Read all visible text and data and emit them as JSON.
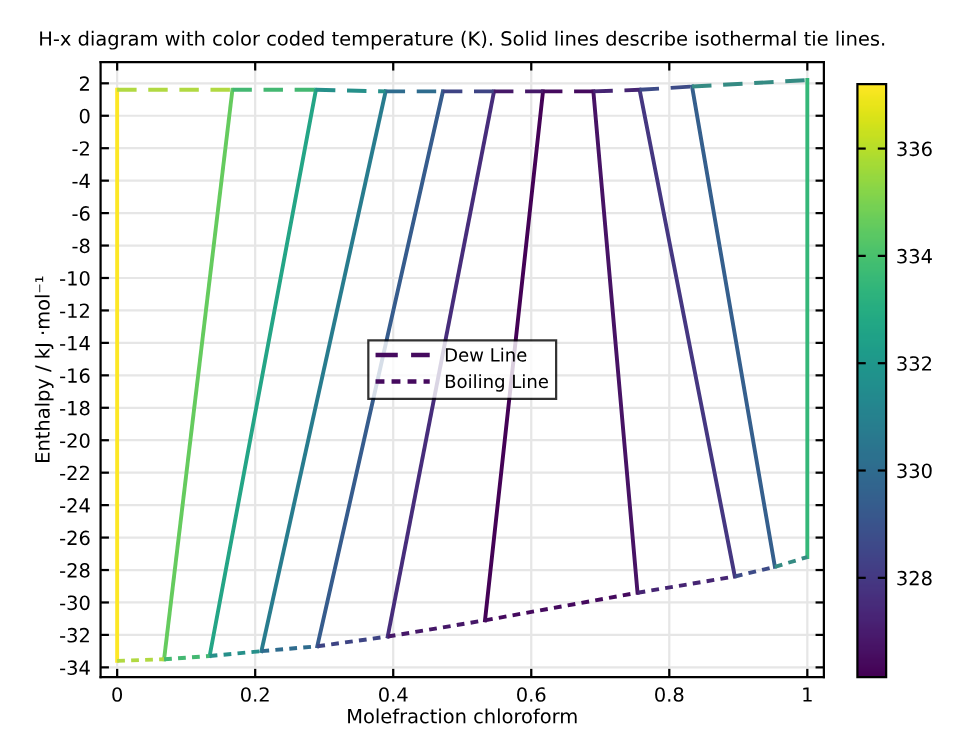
{
  "chart_data": {
    "type": "line",
    "title": "H-x diagram with color coded temperature (K). Solid lines describe isothermal tie lines.",
    "xlabel": "Molefraction chloroform",
    "ylabel": "Enthalpy / kJ ·mol⁻¹",
    "series": [
      {
        "x": [
          0,
          0
        ],
        "values": [
          -33.6,
          1.6
        ],
        "color": "#fde725"
      },
      {
        "x": [
          0.068,
          0.167
        ],
        "values": [
          -33.5,
          1.6
        ],
        "color": "#65cb5e"
      },
      {
        "x": [
          0.134,
          0.288
        ],
        "values": [
          -33.3,
          1.6
        ],
        "color": "#24a586"
      },
      {
        "x": [
          0.209,
          0.389
        ],
        "values": [
          -33.0,
          1.5
        ],
        "color": "#287c8e"
      },
      {
        "x": [
          0.29,
          0.472
        ],
        "values": [
          -32.7,
          1.5
        ],
        "color": "#365c8d"
      },
      {
        "x": [
          0.392,
          0.546
        ],
        "values": [
          -32.1,
          1.5
        ],
        "color": "#472d7b"
      },
      {
        "x": [
          0.533,
          0.617
        ],
        "values": [
          -31.1,
          1.5
        ],
        "color": "#440256"
      },
      {
        "x": [
          0.754,
          0.69
        ],
        "values": [
          -29.4,
          1.5
        ],
        "color": "#471365"
      },
      {
        "x": [
          0.895,
          0.757
        ],
        "values": [
          -28.4,
          1.6
        ],
        "color": "#453781"
      },
      {
        "x": [
          0.953,
          0.833
        ],
        "values": [
          -27.8,
          1.8
        ],
        "color": "#355f8d"
      },
      {
        "x": [
          1.0,
          1.0
        ],
        "values": [
          -27.2,
          2.2
        ],
        "color": "#35b779"
      },
      {
        "line_style": "dashed",
        "x": [
          0,
          0.167
        ],
        "values": [
          1.6,
          1.6
        ],
        "color": "#b1d942"
      },
      {
        "line_style": "dashed",
        "x": [
          0.167,
          0.288
        ],
        "values": [
          1.6,
          1.6
        ],
        "color": "#44b872"
      },
      {
        "line_style": "dashed",
        "x": [
          0.288,
          0.389
        ],
        "values": [
          1.6,
          1.5
        ],
        "color": "#26908a"
      },
      {
        "line_style": "dashed",
        "x": [
          0.389,
          0.472
        ],
        "values": [
          1.5,
          1.5
        ],
        "color": "#2f6c8e"
      },
      {
        "line_style": "dashed",
        "x": [
          0.472,
          0.546
        ],
        "values": [
          1.5,
          1.5
        ],
        "color": "#3e4484"
      },
      {
        "line_style": "dashed",
        "x": [
          0.546,
          0.617
        ],
        "values": [
          1.5,
          1.5
        ],
        "color": "#461868"
      },
      {
        "name": "Dew Line",
        "line_style": "dashed",
        "x": [
          0.617,
          0.69
        ],
        "values": [
          1.5,
          1.5
        ],
        "color": "#450a5e"
      },
      {
        "line_style": "dashed",
        "x": [
          0.69,
          0.757
        ],
        "values": [
          1.5,
          1.6
        ],
        "color": "#462573"
      },
      {
        "line_style": "dashed",
        "x": [
          0.757,
          0.833
        ],
        "values": [
          1.6,
          1.8
        ],
        "color": "#3d4b87"
      },
      {
        "line_style": "dashed",
        "x": [
          0.833,
          1.0
        ],
        "values": [
          1.8,
          2.2
        ],
        "color": "#358b83"
      },
      {
        "line_style": "dotted",
        "x": [
          0,
          0.068
        ],
        "values": [
          -33.6,
          -33.5
        ],
        "color": "#b1d942"
      },
      {
        "line_style": "dotted",
        "x": [
          0.068,
          0.134
        ],
        "values": [
          -33.5,
          -33.3
        ],
        "color": "#44b872"
      },
      {
        "line_style": "dotted",
        "x": [
          0.134,
          0.209
        ],
        "values": [
          -33.3,
          -33.0
        ],
        "color": "#26908a"
      },
      {
        "line_style": "dotted",
        "x": [
          0.209,
          0.29
        ],
        "values": [
          -33.0,
          -32.7
        ],
        "color": "#2f6c8e"
      },
      {
        "line_style": "dotted",
        "x": [
          0.29,
          0.392
        ],
        "values": [
          -32.7,
          -32.1
        ],
        "color": "#3e4484"
      },
      {
        "line_style": "dotted",
        "x": [
          0.392,
          0.533
        ],
        "values": [
          -32.1,
          -31.1
        ],
        "color": "#461868"
      },
      {
        "name": "Boiling Line",
        "line_style": "dotted",
        "x": [
          0.533,
          0.754
        ],
        "values": [
          -31.1,
          -29.4
        ],
        "color": "#450a5e"
      },
      {
        "line_style": "dotted",
        "x": [
          0.754,
          0.895
        ],
        "values": [
          -29.4,
          -28.4
        ],
        "color": "#462573"
      },
      {
        "line_style": "dotted",
        "x": [
          0.895,
          0.953
        ],
        "values": [
          -28.4,
          -27.8
        ],
        "color": "#3d4b87"
      },
      {
        "line_style": "dotted",
        "x": [
          0.953,
          1.0
        ],
        "values": [
          -27.8,
          -27.2
        ],
        "color": "#358b83"
      }
    ],
    "xlim": [
      -0.024,
      1.024
    ],
    "ylim": [
      -34.6,
      3.3
    ],
    "xticks": [
      0,
      0.2,
      0.4,
      0.6,
      0.8,
      1
    ],
    "yticks": [
      -34,
      -32,
      -30,
      -28,
      -26,
      -24,
      -22,
      -20,
      -18,
      -16,
      -14,
      -12,
      -10,
      -8,
      -6,
      -4,
      -2,
      0,
      2
    ],
    "clim": [
      326.15,
      337.2
    ],
    "cticks": [
      328,
      330,
      332,
      334,
      336
    ],
    "grid": true,
    "legend": "center",
    "line_style": "solid"
  }
}
